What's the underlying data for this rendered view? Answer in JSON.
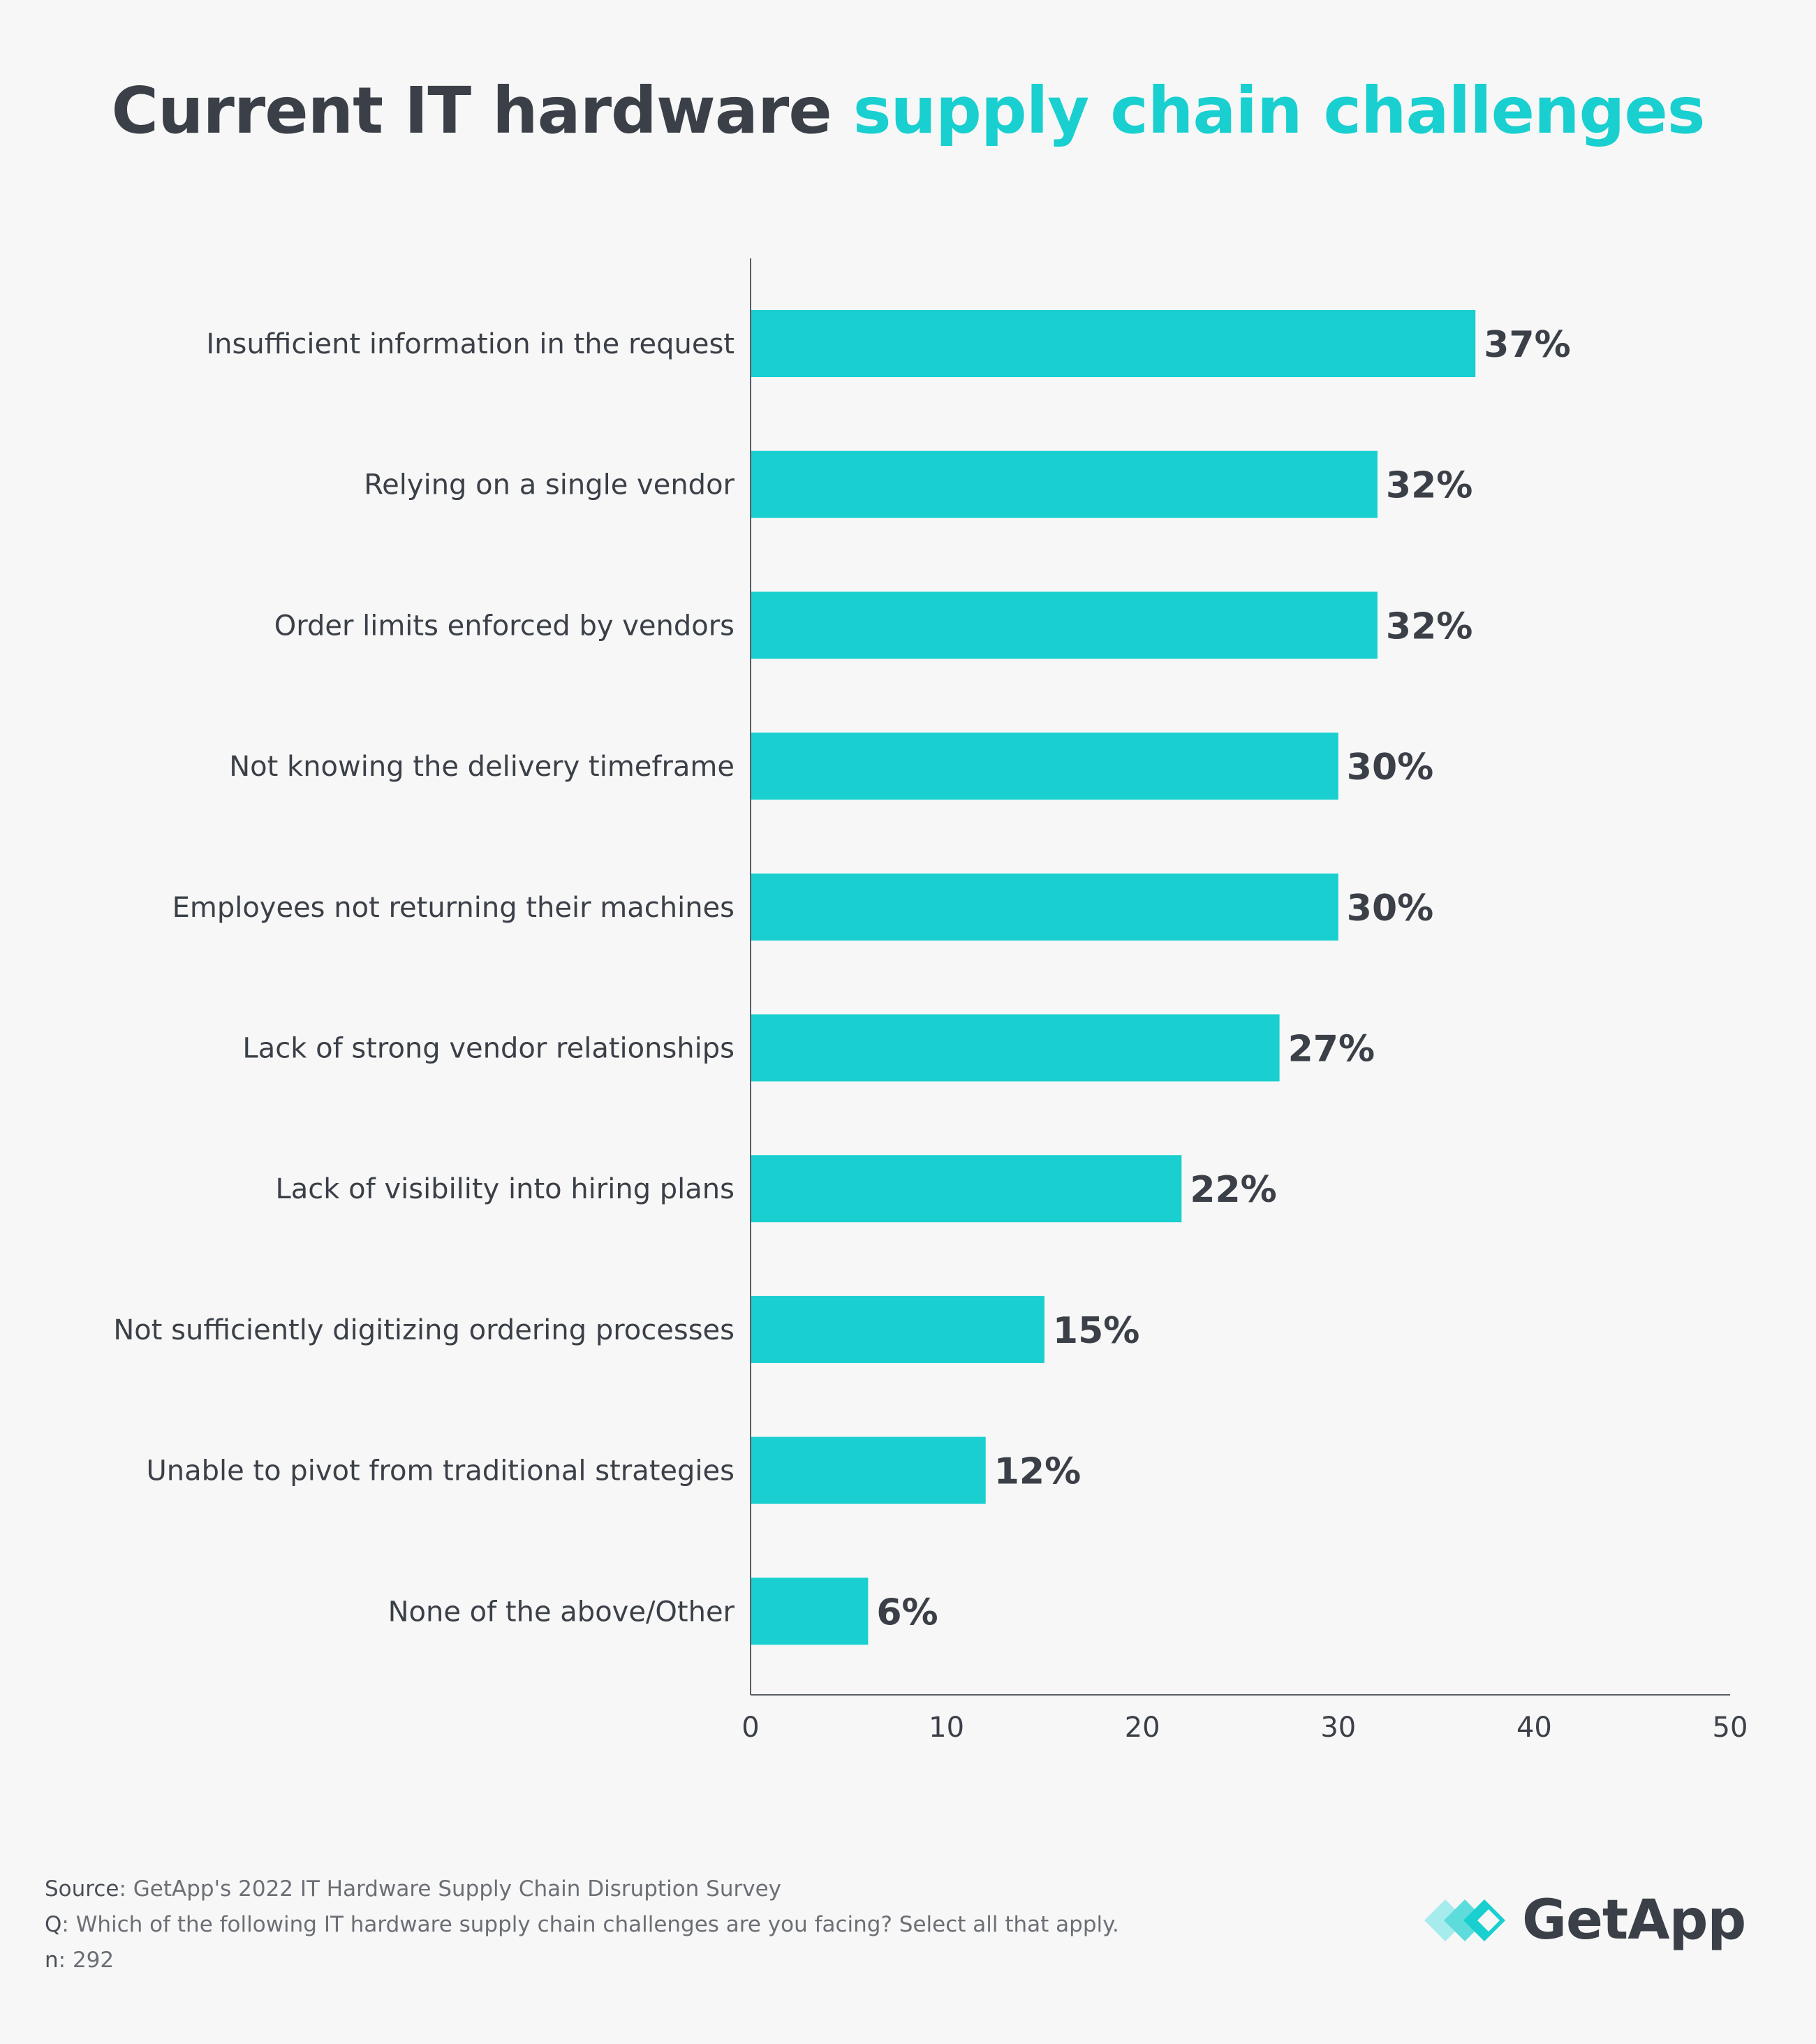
{
  "title": {
    "part1": "Current IT hardware",
    "part2": "supply chain challenges"
  },
  "colors": {
    "bar": "#19cfcf",
    "text": "#3b4048",
    "accent": "#19cfcf",
    "background": "#f7f7f7"
  },
  "chart_data": {
    "type": "bar",
    "orientation": "horizontal",
    "title": "Current IT hardware supply chain challenges",
    "categories": [
      "Insufficient information in the request",
      "Relying on a single vendor",
      "Order limits enforced by vendors",
      "Not knowing the delivery timeframe",
      "Employees not returning their machines",
      "Lack of strong vendor relationships",
      "Lack of visibility into hiring plans",
      "Not sufficiently digitizing ordering processes",
      "Unable to pivot from traditional strategies",
      "None of the above/Other"
    ],
    "values": [
      37,
      32,
      32,
      30,
      30,
      27,
      22,
      15,
      12,
      6
    ],
    "value_labels": [
      "37%",
      "32%",
      "32%",
      "30%",
      "30%",
      "27%",
      "22%",
      "15%",
      "12%",
      "6%"
    ],
    "xlim": [
      0,
      50
    ],
    "xticks": [
      0,
      10,
      20,
      30,
      40,
      50
    ],
    "xlabel": "",
    "ylabel": "",
    "grid": false
  },
  "footer": {
    "source_key": "Source",
    "source_text": ": GetApp's 2022 IT Hardware Supply Chain Disruption Survey",
    "q_key": "Q",
    "q_text": ": Which of the following IT hardware supply chain challenges are you facing? Select all that apply.",
    "n_key": "n",
    "n_text": ": 292"
  },
  "logo": {
    "icon": "getapp-chevrons-icon",
    "text": "GetApp"
  }
}
